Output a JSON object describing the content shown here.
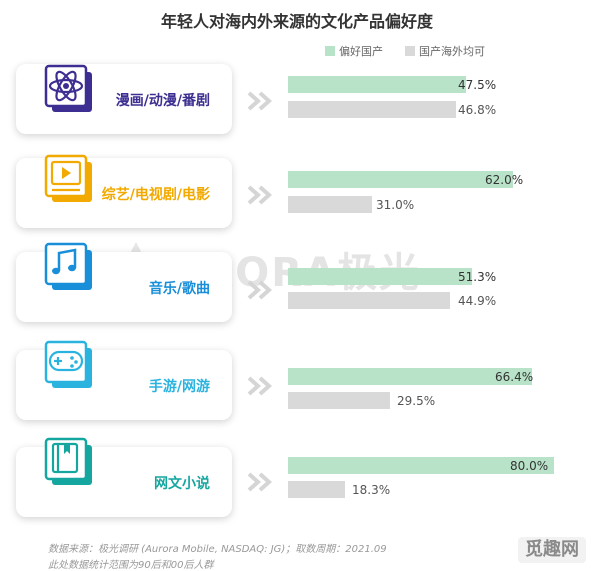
{
  "title": "年轻人对海内外来源的文化产品偏好度",
  "legend": {
    "domestic": "偏好国产",
    "overseas": "国产海外均可"
  },
  "colors": {
    "domestic": "#b8e3c8",
    "overseas": "#d9d9d9",
    "label_anime": "#3d2f91",
    "label_variety": "#f2a900",
    "label_music": "#1a8fd9",
    "label_game": "#2bb3df",
    "label_novel": "#16a6a0"
  },
  "categories": [
    {
      "label": "漫画/动漫/番剧",
      "icon": "atom-icon",
      "domestic": "47.5%",
      "overseas": "46.8%"
    },
    {
      "label": "综艺/电视剧/电影",
      "icon": "video-play-icon",
      "domestic": "62.0%",
      "overseas": "31.0%"
    },
    {
      "label": "音乐/歌曲",
      "icon": "music-note-icon",
      "domestic": "51.3%",
      "overseas": "44.9%"
    },
    {
      "label": "手游/网游",
      "icon": "gamepad-icon",
      "domestic": "66.4%",
      "overseas": "29.5%"
    },
    {
      "label": "网文小说",
      "icon": "book-icon",
      "domestic": "80.0%",
      "overseas": "18.3%"
    }
  ],
  "chart_data": {
    "type": "bar",
    "orientation": "horizontal",
    "title": "年轻人对海内外来源的文化产品偏好度",
    "categories": [
      "漫画/动漫/番剧",
      "综艺/电视剧/电影",
      "音乐/歌曲",
      "手游/网游",
      "网文小说"
    ],
    "series": [
      {
        "name": "偏好国产",
        "values": [
          47.5,
          62.0,
          51.3,
          66.4,
          80.0
        ]
      },
      {
        "name": "国产海外均可",
        "values": [
          46.8,
          31.0,
          44.9,
          29.5,
          18.3
        ]
      }
    ],
    "unit": "%",
    "legend_position": "top-right",
    "grid": false
  },
  "watermark": "URORA极光",
  "footnotes": [
    "数据来源：极光调研 (Aurora Mobile, NASDAQ: JG)；取数周期：2021.09",
    "此处数据统计范围为90后和00后人群"
  ],
  "corner_mark": "觅趣网"
}
